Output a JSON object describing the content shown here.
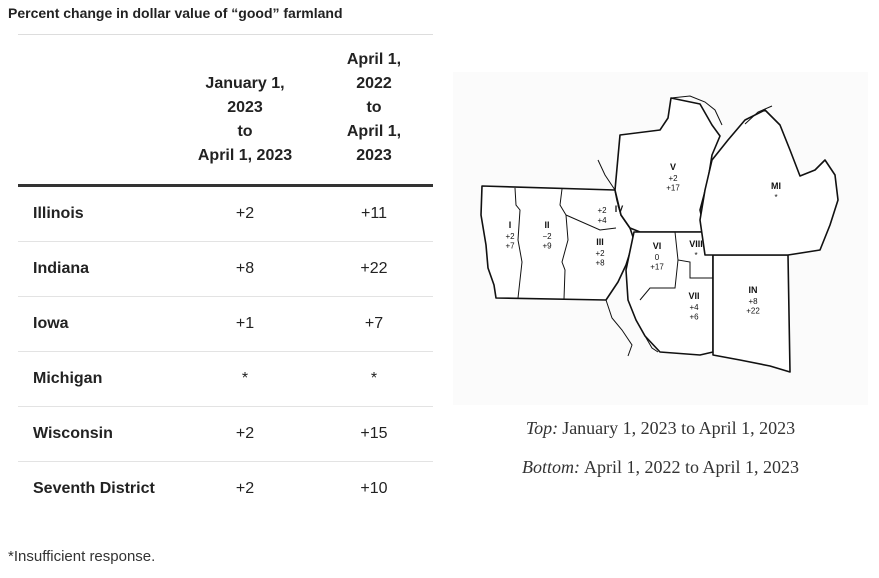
{
  "header": {
    "title": "Percent change in dollar value of “good” farmland"
  },
  "table": {
    "columns": [
      [
        "January 1,",
        "2023",
        "to",
        "April 1, 2023"
      ],
      [
        "April 1,",
        "2022",
        "to",
        "April 1,",
        "2023"
      ]
    ],
    "rows": [
      [
        "Illinois",
        "+2",
        "+11"
      ],
      [
        "Indiana",
        "+8",
        "+22"
      ],
      [
        "Iowa",
        "+1",
        "+7"
      ],
      [
        "Michigan",
        "*",
        "*"
      ],
      [
        "Wisconsin",
        "+2",
        "+15"
      ],
      [
        "Seventh District",
        "+2",
        "+10"
      ]
    ]
  },
  "footnote": "*Insufficient response.",
  "map": {
    "regions": [
      {
        "name": "I",
        "values": [
          "+2",
          "+7"
        ]
      },
      {
        "name": "II",
        "values": [
          "−2",
          "+9"
        ]
      },
      {
        "name": "III",
        "values": [
          "+2",
          "+8"
        ]
      },
      {
        "name": "IV",
        "values": [
          "+2",
          "+4"
        ]
      },
      {
        "name": "V",
        "values": [
          "+2",
          "+17"
        ]
      },
      {
        "name": "VI",
        "values": [
          "0",
          "+17"
        ]
      },
      {
        "name": "VII",
        "values": [
          "+4",
          "+6"
        ]
      },
      {
        "name": "VIII",
        "values": [
          "*"
        ]
      },
      {
        "name": "IN",
        "values": [
          "+8",
          "+22"
        ]
      },
      {
        "name": "MI",
        "values": [
          "*"
        ]
      }
    ],
    "captions": [
      {
        "label": "Top:",
        "text": "January 1, 2023 to April 1, 2023"
      },
      {
        "label": "Bottom:",
        "text": "April 1, 2022 to April 1, 2023"
      }
    ]
  }
}
